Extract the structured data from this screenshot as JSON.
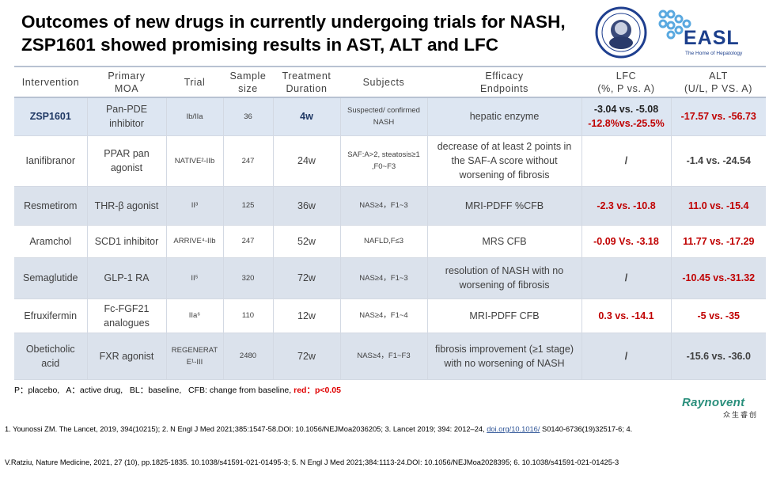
{
  "header": {
    "title_lines": [
      "Outcomes of new drugs in currently undergoing trials for NASH,",
      "ZSP1601 showed promising results in AST, ALT and LFC"
    ]
  },
  "logos": {
    "easl": "EASL",
    "easl_tagline": "The Home of Hepatology",
    "raynovent": "Raynovent",
    "raynovent_cn": "众生睿创"
  },
  "table": {
    "columns": [
      [
        "Intervention"
      ],
      [
        "Primary",
        "MOA"
      ],
      [
        "Trial"
      ],
      [
        "Sample",
        "size"
      ],
      [
        "Treatment",
        "Duration"
      ],
      [
        "Subjects"
      ],
      [
        "Efficacy",
        "Endpoints"
      ],
      [
        "LFC",
        "(%, P vs. A)"
      ],
      [
        "ALT",
        "(U/L, P VS. A)"
      ]
    ],
    "rows": [
      [
        "ZSP1601",
        "Pan-PDE inhibitor",
        "Ib/IIa",
        "36",
        "4w",
        "Suspected/ confirmed NASH",
        "hepatic enzyme",
        [
          "-3.04 vs. -5.08",
          "-12.8%vs.-25.5%"
        ],
        "-17.57 vs. -56.73"
      ],
      [
        "Ianifibranor",
        "PPAR pan agonist",
        "NATIVE²-IIb",
        "247",
        "24w",
        "SAF:A>2, steatosis≥1 ,F0~F3",
        "decrease of at least 2 points in the SAF-A score without worsening of fibrosis",
        "/",
        "-1.4 vs. -24.54"
      ],
      [
        "Resmetirom",
        "THR-β agonist",
        "II³",
        "125",
        "36w",
        "NAS≥4，F1~3",
        "MRI-PDFF %CFB",
        "-2.3 vs. -10.8",
        "11.0 vs. -15.4"
      ],
      [
        "Aramchol",
        "SCD1 inhibitor",
        "ARRIVE⁴-IIb",
        "247",
        "52w",
        "NAFLD,F≤3",
        "MRS CFB",
        "-0.09 Vs. -3.18",
        "11.77 vs. -17.29"
      ],
      [
        "Semaglutide",
        "GLP-1 RA",
        "II⁵",
        "320",
        "72w",
        "NAS≥4，F1~3",
        "resolution of NASH with no worsening of fibrosis",
        "/",
        "-10.45 vs.-31.32"
      ],
      [
        "Efruxifermin",
        "Fc-FGF21 analogues",
        "IIa⁶",
        "110",
        "12w",
        "NAS≥4，F1~4",
        "MRI-PDFF CFB",
        "0.3 vs. -14.1",
        "-5 vs. -35"
      ],
      [
        "Obeticholic acid",
        "FXR agonist",
        "REGENERATE¹-III",
        "2480",
        "72w",
        "NAS≥4，F1~F3",
        "fibrosis improvement (≥1 stage) with no worsening of NASH",
        "/",
        "-15.6 vs. -36.0"
      ]
    ]
  },
  "legend": {
    "text": "P：placebo,   A：active drug,   BL：baseline,   CFB: change from baseline, ",
    "red_note": "red：p<0.05"
  },
  "references": {
    "line1": "1. Younossi ZM. The Lancet, 2019, 394(10215); 2. N Engl J Med 2021;385:1547-58.DOI: 10.1056/NEJMoa2036205; 3. Lancet 2019; 394: 2012–24, ",
    "link": "doi.org/10.1016/",
    "line1_end": " S0140-6736(19)32517-6; 4.",
    "line2": "V.Ratziu, Nature Medicine, 2021, 27 (10), pp.1825-1835. 10.1038/s41591-021-01495-3; 5. N Engl J Med 2021;384:1113-24.DOI: 10.1056/NEJMoa2028395; 6. 10.1038/s41591-021-01425-3"
  }
}
